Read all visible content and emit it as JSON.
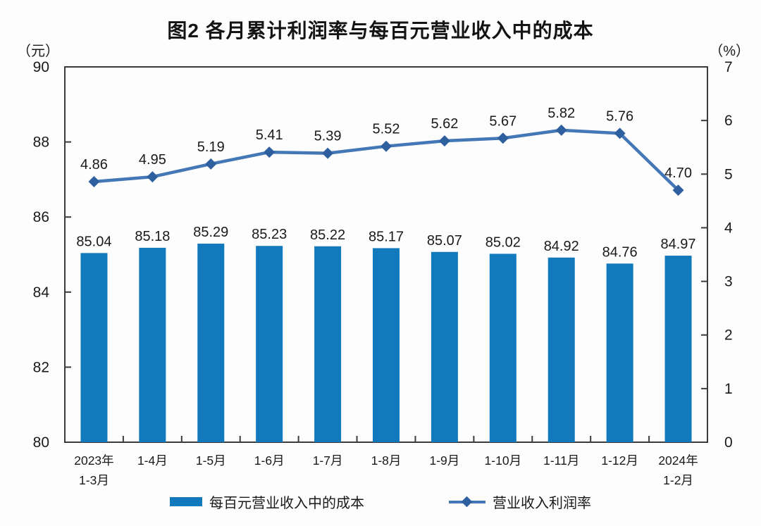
{
  "chart_data": {
    "type": "combo-bar-line",
    "title": "图2 各月累计利润率与每百元营业收入中的成本",
    "categories": [
      [
        "2023年",
        "1-3月"
      ],
      [
        "1-4月"
      ],
      [
        "1-5月"
      ],
      [
        "1-6月"
      ],
      [
        "1-7月"
      ],
      [
        "1-8月"
      ],
      [
        "1-9月"
      ],
      [
        "1-10月"
      ],
      [
        "1-11月"
      ],
      [
        "1-12月"
      ],
      [
        "2024年",
        "1-2月"
      ]
    ],
    "series": [
      {
        "name": "每百元营业收入中的成本",
        "type": "bar",
        "axis": "left",
        "values": [
          85.04,
          85.18,
          85.29,
          85.23,
          85.22,
          85.17,
          85.07,
          85.02,
          84.92,
          84.76,
          84.97
        ],
        "color": "#1279BD"
      },
      {
        "name": "营业收入利润率",
        "type": "line",
        "axis": "right",
        "values": [
          4.86,
          4.95,
          5.19,
          5.41,
          5.39,
          5.52,
          5.62,
          5.67,
          5.82,
          5.76,
          4.7
        ],
        "color": "#4377B6",
        "marker_color": "#2E5F9F"
      }
    ],
    "left_axis": {
      "label": "（元）",
      "min": 80,
      "max": 90,
      "ticks": [
        80,
        82,
        84,
        86,
        88,
        90
      ]
    },
    "right_axis": {
      "label": "（%）",
      "min": 0,
      "max": 7,
      "ticks": [
        0,
        1,
        2,
        3,
        4,
        5,
        6,
        7
      ]
    },
    "legend_position": "bottom",
    "grid": false,
    "axis_color": "#3c3c3c",
    "text_color": "#1a1a1a"
  }
}
